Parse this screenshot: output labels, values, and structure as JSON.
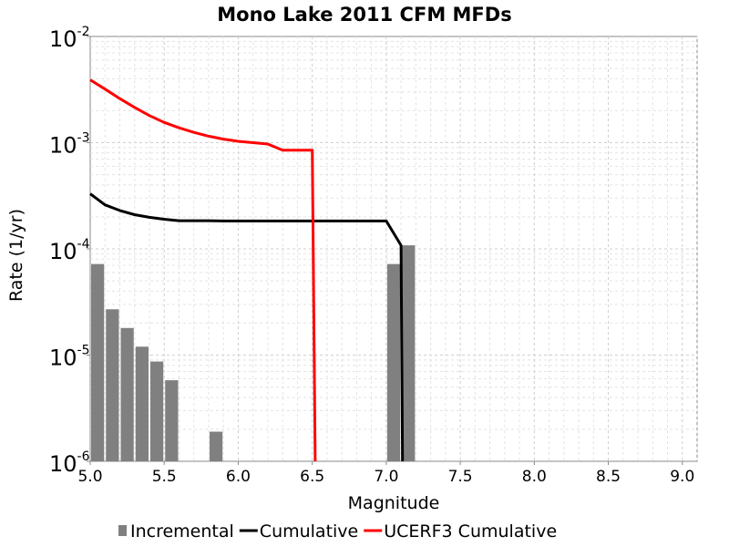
{
  "chart_data": {
    "type": "bar+line",
    "title": "Mono Lake 2011 CFM MFDs",
    "xlabel": "Magnitude",
    "ylabel": "Rate (1/yr)",
    "xlim": [
      5.0,
      9.1
    ],
    "ylim": [
      1e-06,
      0.01
    ],
    "yscale": "log",
    "grid": true,
    "x_ticks": [
      "5.0",
      "5.5",
      "6.0",
      "6.5",
      "7.0",
      "7.5",
      "8.0",
      "8.5",
      "9.0"
    ],
    "y_ticks": [
      {
        "base": "10",
        "exp": "-6"
      },
      {
        "base": "10",
        "exp": "-5"
      },
      {
        "base": "10",
        "exp": "-4"
      },
      {
        "base": "10",
        "exp": "-3"
      },
      {
        "base": "10",
        "exp": "-2"
      }
    ],
    "legend_position": "bottom",
    "series": [
      {
        "name": "Incremental",
        "type": "bar",
        "color": "#808080",
        "x": [
          5.05,
          5.15,
          5.25,
          5.35,
          5.45,
          5.55,
          5.85,
          7.05,
          7.15
        ],
        "values": [
          7.2e-05,
          2.7e-05,
          1.8e-05,
          1.2e-05,
          8.7e-06,
          5.8e-06,
          1.9e-06,
          7.2e-05,
          0.000108
        ]
      },
      {
        "name": "Cumulative",
        "type": "line",
        "color": "#000000",
        "x": [
          5.0,
          5.1,
          5.2,
          5.3,
          5.4,
          5.5,
          5.6,
          5.7,
          5.8,
          5.9,
          6.0,
          6.5,
          7.0,
          7.1,
          7.11
        ],
        "values": [
          0.00033,
          0.00026,
          0.00023,
          0.00021,
          0.000198,
          0.00019,
          0.000184,
          0.000184,
          0.000184,
          0.000183,
          0.000183,
          0.000183,
          0.000183,
          0.000108,
          1e-06
        ]
      },
      {
        "name": "UCERF3 Cumulative",
        "type": "line",
        "color": "#ff0000",
        "x": [
          5.0,
          5.1,
          5.2,
          5.3,
          5.4,
          5.5,
          5.6,
          5.7,
          5.8,
          5.9,
          6.0,
          6.1,
          6.2,
          6.3,
          6.4,
          6.5,
          6.52
        ],
        "values": [
          0.0039,
          0.0032,
          0.0026,
          0.00215,
          0.0018,
          0.00155,
          0.00138,
          0.00125,
          0.00115,
          0.00108,
          0.00103,
          0.001,
          0.00097,
          0.00085,
          0.00085,
          0.00085,
          1e-06
        ]
      }
    ]
  }
}
